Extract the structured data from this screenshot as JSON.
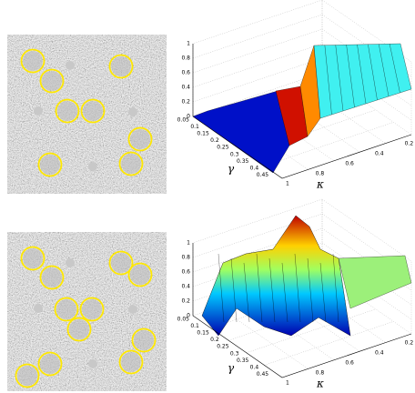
{
  "panels": [
    {
      "plot": {
        "zticks": [
          "1",
          "0.8",
          "0.6",
          "0.4",
          "0.2",
          "0"
        ],
        "yticks": [
          "0.05",
          "0.1",
          "0.15",
          "0.2",
          "0.25",
          "0.3",
          "0.35",
          "0.4",
          "0.45"
        ],
        "xticks": [
          "1",
          "0.8",
          "0.6",
          "0.4",
          "0.2"
        ],
        "ylabel": "γ",
        "xlabel": "κ"
      }
    },
    {
      "plot": {
        "zticks": [
          "1",
          "0.8",
          "0.6",
          "0.4",
          "0.2",
          "0"
        ],
        "yticks": [
          "0.05",
          "0.1",
          "0.15",
          "0.2",
          "0.25",
          "0.3",
          "0.35",
          "0.4",
          "0.45"
        ],
        "xticks": [
          "1",
          "0.8",
          "0.6",
          "0.4",
          "0.2"
        ],
        "ylabel": "γ",
        "xlabel": "κ"
      }
    }
  ]
}
